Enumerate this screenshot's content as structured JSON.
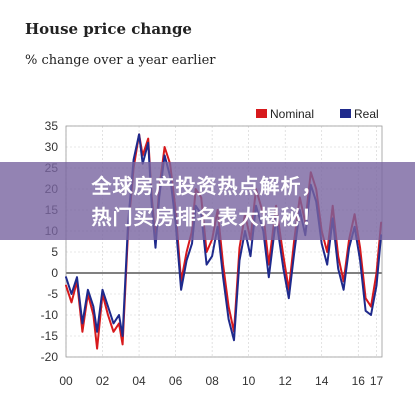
{
  "chart_data": {
    "type": "line",
    "title": "House price change",
    "subtitle": "% change over a year earlier",
    "x_tick_labels": [
      "00",
      "02",
      "04",
      "06",
      "08",
      "10",
      "12",
      "14",
      "16",
      "17"
    ],
    "xlim": [
      2000,
      2017.3
    ],
    "ylim": [
      -20,
      35
    ],
    "y_ticks": [
      -20,
      -15,
      -10,
      -5,
      0,
      5,
      10,
      15,
      20,
      25,
      30,
      35
    ],
    "grid": true,
    "legend_position": "top-right",
    "series": [
      {
        "name": "Nominal",
        "color": "#d7191c",
        "x": [
          2000.0,
          2000.3,
          2000.6,
          2000.9,
          2001.2,
          2001.5,
          2001.7,
          2002.0,
          2002.3,
          2002.6,
          2002.9,
          2003.1,
          2003.4,
          2003.7,
          2004.0,
          2004.2,
          2004.5,
          2004.7,
          2004.9,
          2005.1,
          2005.4,
          2005.7,
          2006.0,
          2006.3,
          2006.6,
          2006.9,
          2007.1,
          2007.4,
          2007.7,
          2008.0,
          2008.3,
          2008.6,
          2008.9,
          2009.2,
          2009.5,
          2009.8,
          2010.1,
          2010.4,
          2010.8,
          2011.1,
          2011.5,
          2011.9,
          2012.2,
          2012.5,
          2012.8,
          2013.1,
          2013.4,
          2013.7,
          2014.0,
          2014.3,
          2014.6,
          2014.9,
          2015.2,
          2015.5,
          2015.8,
          2016.1,
          2016.4,
          2016.7,
          2017.0,
          2017.25
        ],
        "values": [
          -3,
          -7,
          -2,
          -14,
          -5,
          -10,
          -18,
          -5,
          -10,
          -14,
          -12,
          -17,
          10,
          25,
          33,
          28,
          32,
          18,
          8,
          20,
          30,
          26,
          15,
          -2,
          5,
          10,
          20,
          18,
          5,
          8,
          15,
          2,
          -8,
          -14,
          6,
          14,
          8,
          20,
          14,
          2,
          16,
          4,
          -4,
          8,
          18,
          12,
          24,
          20,
          10,
          5,
          16,
          4,
          -2,
          8,
          14,
          6,
          -6,
          -8,
          0,
          12
        ]
      },
      {
        "name": "Real",
        "color": "#1f2a8c",
        "x": [
          2000.0,
          2000.3,
          2000.6,
          2000.9,
          2001.2,
          2001.5,
          2001.7,
          2002.0,
          2002.3,
          2002.6,
          2002.9,
          2003.1,
          2003.4,
          2003.7,
          2004.0,
          2004.2,
          2004.5,
          2004.7,
          2004.9,
          2005.1,
          2005.4,
          2005.7,
          2006.0,
          2006.3,
          2006.6,
          2006.9,
          2007.1,
          2007.4,
          2007.7,
          2008.0,
          2008.3,
          2008.6,
          2008.9,
          2009.2,
          2009.5,
          2009.8,
          2010.1,
          2010.4,
          2010.8,
          2011.1,
          2011.5,
          2011.9,
          2012.2,
          2012.5,
          2012.8,
          2013.1,
          2013.4,
          2013.7,
          2014.0,
          2014.3,
          2014.6,
          2014.9,
          2015.2,
          2015.5,
          2015.8,
          2016.1,
          2016.4,
          2016.7,
          2017.0,
          2017.25
        ],
        "values": [
          -1,
          -5,
          -1,
          -12,
          -4,
          -8,
          -14,
          -4,
          -8,
          -12,
          -10,
          -15,
          12,
          27,
          33,
          26,
          31,
          16,
          6,
          18,
          28,
          23,
          12,
          -4,
          3,
          7,
          16,
          14,
          2,
          4,
          11,
          -1,
          -11,
          -16,
          3,
          10,
          4,
          16,
          10,
          -1,
          13,
          1,
          -6,
          5,
          15,
          9,
          21,
          17,
          7,
          2,
          13,
          1,
          -4,
          6,
          11,
          3,
          -9,
          -10,
          -3,
          9
        ]
      }
    ]
  },
  "banner": {
    "line1": "全球房产投资热点解析，",
    "line2": "热门买房排名表大揭秘！"
  }
}
